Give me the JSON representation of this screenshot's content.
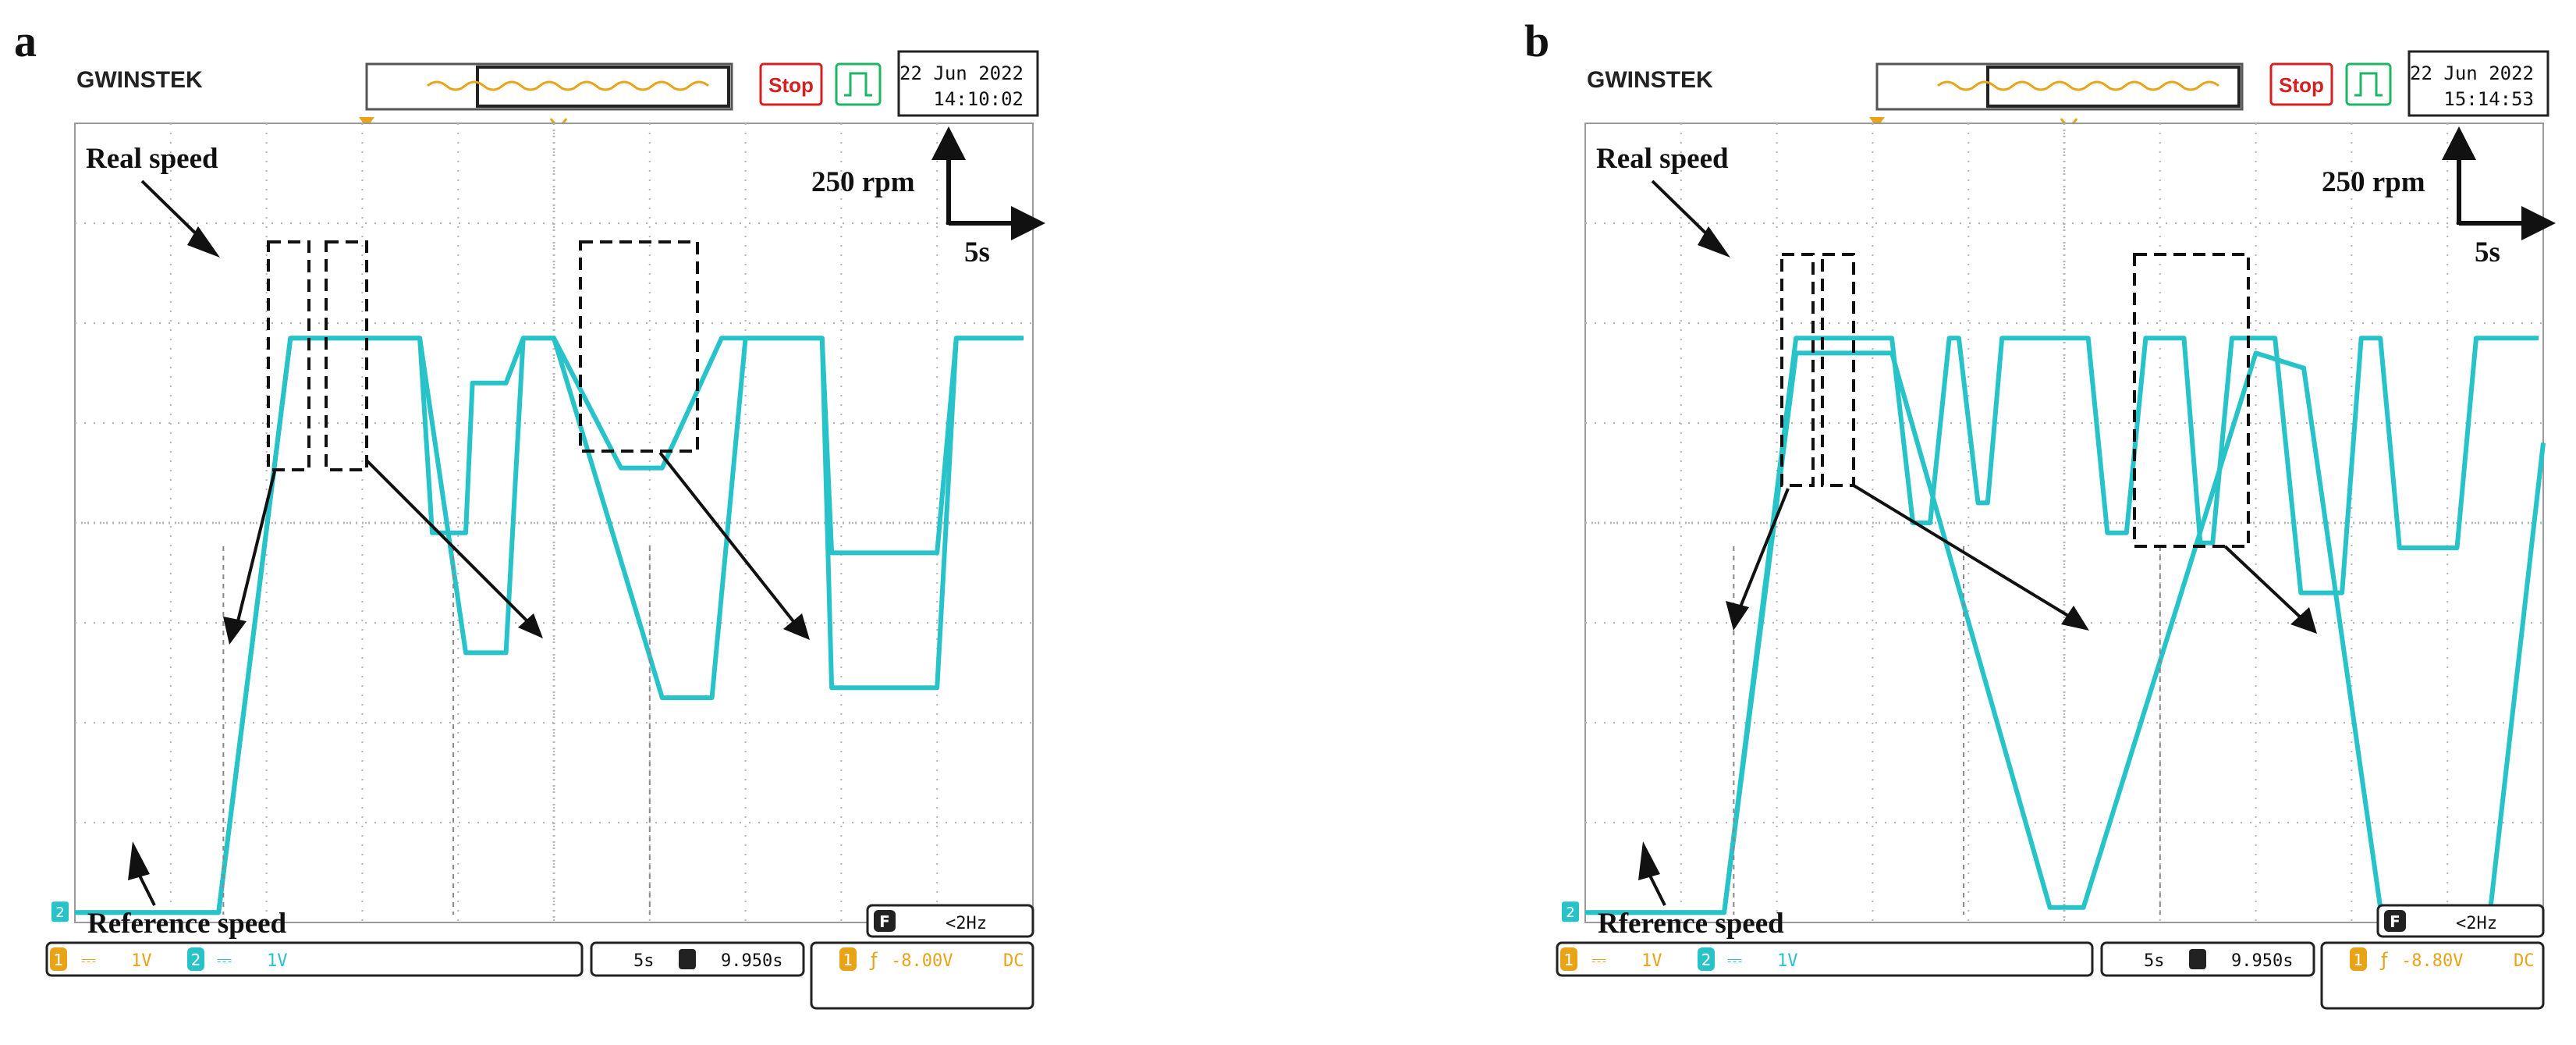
{
  "panels": [
    {
      "id": "a",
      "panel_label": "a",
      "brand": "GWINSTEK",
      "run_state": "Stop",
      "date": "22 Jun 2022",
      "time": "14:10:02",
      "annotations": {
        "real": "Real speed",
        "reference": "Reference speed",
        "yscale": "250 rpm",
        "xscale": "5s"
      },
      "ch1_label": "1V",
      "ch2_label": "1V",
      "timebase": "5s",
      "position": "9.950s",
      "trigger_level": "-8.00V",
      "trigger_coupling": "DC",
      "freq": "<2Hz",
      "channel_marker": "2",
      "trace_color": "#27c3c9",
      "chart_data": {
        "type": "line",
        "title": "",
        "xlabel": "",
        "ylabel": "",
        "x_unit_per_div": "5s",
        "y_unit_per_div": "250 rpm",
        "x_range_div": [
          0,
          10
        ],
        "y_range_div": [
          0,
          8
        ],
        "grid": true,
        "series": [
          {
            "x": [
              0,
              1.5,
              2.25,
              3.4,
              3.5,
              3.6,
              4.08,
              4.5,
              4.68,
              5.0,
              6.13,
              6.65,
              7.0,
              7.3,
              7.45,
              7.8,
              7.9,
              9.0,
              9.2,
              9.9
            ],
            "y": [
              0,
              0,
              5.75,
              5.75,
              5.75,
              5.75,
              2.6,
              2.6,
              5.75,
              5.75,
              2.15,
              2.15,
              5.75,
              5.75,
              5.75,
              5.75,
              2.25,
              2.25,
              5.75,
              5.75
            ]
          },
          {
            "x": [
              0,
              1.5,
              2.25,
              3.4,
              3.6,
              3.73,
              4.08,
              4.15,
              4.5,
              4.68,
              4.95,
              5.0,
              5.7,
              6.13,
              6.75,
              7.0,
              7.3,
              7.45,
              7.8,
              7.9,
              9.0,
              9.2,
              9.9
            ],
            "y": [
              0,
              0,
              5.75,
              5.75,
              5.75,
              3.8,
              3.8,
              5.3,
              5.3,
              5.75,
              5.75,
              5.75,
              4.45,
              4.45,
              5.75,
              5.75,
              5.75,
              5.75,
              5.75,
              3.6,
              3.6,
              5.75,
              5.75
            ]
          }
        ]
      }
    },
    {
      "id": "b",
      "panel_label": "b",
      "brand": "GWINSTEK",
      "run_state": "Stop",
      "date": "22 Jun 2022",
      "time": "15:14:53",
      "annotations": {
        "real": "Real speed",
        "reference": "Rference speed",
        "yscale": "250 rpm",
        "xscale": "5s"
      },
      "ch1_label": "1V",
      "ch2_label": "1V",
      "timebase": "5s",
      "position": "9.950s",
      "trigger_level": "-8.80V",
      "trigger_coupling": "DC",
      "freq": "<2Hz",
      "channel_marker": "2",
      "trace_color": "#27c3c9",
      "chart_data": {
        "type": "line",
        "title": "",
        "xlabel": "",
        "ylabel": "",
        "x_unit_per_div": "5s",
        "y_unit_per_div": "250 rpm",
        "x_range_div": [
          0,
          10
        ],
        "y_range_div": [
          0,
          8
        ],
        "grid": true,
        "series": [
          {
            "x": [
              0,
              1.45,
              2.2,
              3.2,
              3.42,
              3.6,
              3.8,
              3.9,
              4.1,
              4.2,
              4.35,
              5.25,
              5.45,
              5.65,
              5.85,
              6.25,
              6.42,
              6.55,
              6.75,
              7.2,
              7.47,
              7.9,
              8.1,
              8.3,
              8.5,
              9.1,
              9.3,
              9.95
            ],
            "y": [
              0,
              0,
              5.75,
              5.75,
              3.9,
              3.9,
              5.75,
              5.75,
              4.1,
              4.1,
              5.75,
              5.75,
              3.8,
              3.8,
              5.75,
              5.75,
              3.7,
              3.7,
              5.75,
              5.75,
              3.2,
              3.2,
              5.75,
              5.75,
              3.65,
              3.65,
              5.75,
              5.75
            ]
          },
          {
            "x": [
              0,
              1.45,
              2.2,
              3.2,
              4.85,
              5.2,
              7.0,
              7.5,
              8.3,
              9.45,
              10
            ],
            "y": [
              0,
              0,
              5.6,
              5.6,
              0.05,
              0.05,
              5.6,
              5.45,
              0.05,
              0.05,
              4.7
            ]
          }
        ]
      }
    }
  ]
}
